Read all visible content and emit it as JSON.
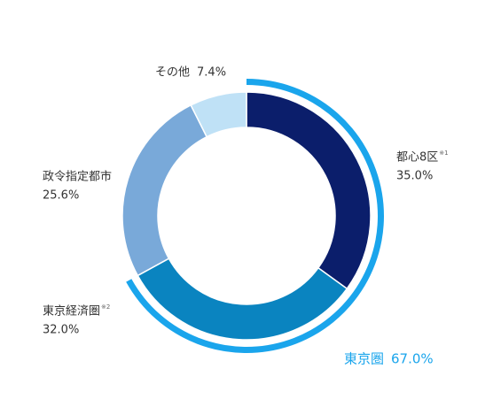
{
  "chart_data": {
    "type": "donut",
    "categories": [
      "都心8区",
      "東京経済圏",
      "政令指定都市",
      "その他"
    ],
    "notes": [
      "※1",
      "※2",
      null,
      null
    ],
    "values": [
      35.0,
      32.0,
      25.6,
      7.4
    ],
    "value_labels": [
      "35.0%",
      "32.0%",
      "25.6%",
      "7.4%"
    ],
    "colors": [
      "#0b1e6b",
      "#0a84c0",
      "#79a9d9",
      "#bfe1f6"
    ],
    "group": {
      "name": "東京圏",
      "value": 67.0,
      "value_label": "67.0%",
      "color": "#1aa5ec"
    }
  }
}
